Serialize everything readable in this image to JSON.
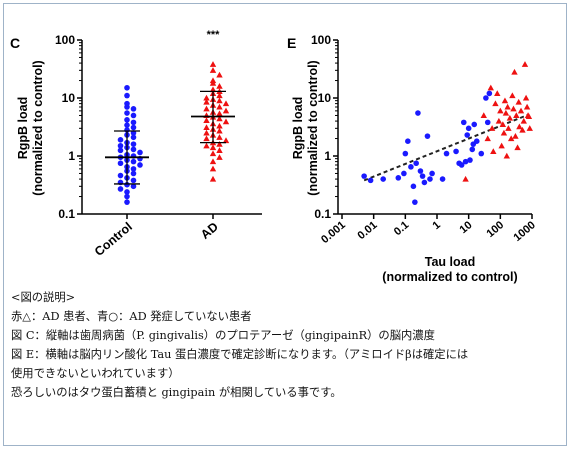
{
  "chart_data": [
    {
      "type": "scatter",
      "panel_label": "C",
      "title": "",
      "ylabel": [
        "RgpB load",
        "(normalized to control)"
      ],
      "xlabel": "",
      "y_scale": "log",
      "ylim": [
        0.1,
        100
      ],
      "y_ticks": [
        {
          "v": 100,
          "label": "100"
        },
        {
          "v": 10,
          "label": "10"
        },
        {
          "v": 1,
          "label": "1"
        },
        {
          "v": 0.1,
          "label": "0.1"
        }
      ],
      "categories": [
        "Control",
        "AD"
      ],
      "annotation": "***",
      "series": [
        {
          "category": "Control",
          "color": "#1a1aff",
          "marker": "circle",
          "mean": 0.95,
          "sd_low": 0.33,
          "sd_high": 2.7,
          "values": [
            15,
            11,
            8,
            7,
            6.5,
            5.5,
            5,
            4.2,
            3.8,
            3.4,
            3.1,
            2.8,
            2.5,
            2.3,
            2.1,
            1.9,
            1.7,
            1.6,
            1.5,
            1.4,
            1.3,
            1.25,
            1.15,
            1.05,
            1,
            0.95,
            0.9,
            0.85,
            0.8,
            0.75,
            0.7,
            0.65,
            0.6,
            0.55,
            0.5,
            0.46,
            0.42,
            0.38,
            0.35,
            0.32,
            0.3,
            0.27,
            0.24,
            0.2,
            0.16
          ]
        },
        {
          "category": "AD",
          "color": "#ee1111",
          "marker": "triangle",
          "mean": 4.8,
          "sd_low": 1.7,
          "sd_high": 13,
          "values": [
            38,
            30,
            25,
            20,
            18,
            16,
            14,
            13,
            12,
            11,
            10,
            9.5,
            9,
            8.5,
            8,
            7.5,
            7,
            6.5,
            6,
            5.7,
            5.4,
            5,
            4.7,
            4.4,
            4.1,
            3.9,
            3.6,
            3.3,
            3.1,
            2.9,
            2.7,
            2.5,
            2.3,
            2.1,
            2,
            1.85,
            1.7,
            1.6,
            1.5,
            1.4,
            1.25,
            1.1,
            0.95,
            0.8,
            0.6,
            0.4
          ]
        }
      ]
    },
    {
      "type": "scatter",
      "panel_label": "E",
      "title": "",
      "ylabel": [
        "RgpB load",
        "(normalized to control)"
      ],
      "xlabel": [
        "Tau load",
        "(normalized to control)"
      ],
      "x_scale": "log",
      "y_scale": "log",
      "xlim": [
        0.001,
        1000
      ],
      "ylim": [
        0.1,
        100
      ],
      "y_ticks": [
        {
          "v": 100,
          "label": "100"
        },
        {
          "v": 10,
          "label": "10"
        },
        {
          "v": 1,
          "label": "1"
        },
        {
          "v": 0.1,
          "label": "0.1"
        }
      ],
      "x_ticks": [
        {
          "v": 0.001,
          "label": "0.001"
        },
        {
          "v": 0.01,
          "label": "0.01"
        },
        {
          "v": 0.1,
          "label": "0.1"
        },
        {
          "v": 1,
          "label": "1"
        },
        {
          "v": 10,
          "label": "10"
        },
        {
          "v": 100,
          "label": "100"
        },
        {
          "v": 1000,
          "label": "1000"
        }
      ],
      "trend_line": {
        "x": [
          0.005,
          800
        ],
        "y": [
          0.38,
          5.2
        ],
        "style": "dashed"
      },
      "series": [
        {
          "color": "#1a1aff",
          "marker": "circle",
          "points": [
            [
              0.005,
              0.45
            ],
            [
              0.008,
              0.38
            ],
            [
              0.02,
              0.4
            ],
            [
              0.06,
              0.42
            ],
            [
              0.09,
              0.5
            ],
            [
              0.1,
              1.1
            ],
            [
              0.12,
              1.8
            ],
            [
              0.15,
              0.65
            ],
            [
              0.18,
              0.3
            ],
            [
              0.2,
              0.16
            ],
            [
              0.22,
              0.75
            ],
            [
              0.25,
              5.5
            ],
            [
              0.3,
              0.55
            ],
            [
              0.35,
              0.45
            ],
            [
              0.4,
              0.35
            ],
            [
              0.5,
              2.2
            ],
            [
              0.6,
              0.4
            ],
            [
              0.7,
              0.5
            ],
            [
              1.5,
              0.4
            ],
            [
              2,
              1.1
            ],
            [
              4,
              1.2
            ],
            [
              5,
              0.75
            ],
            [
              6,
              0.7
            ],
            [
              7,
              3.8
            ],
            [
              8,
              0.8
            ],
            [
              9,
              2.3
            ],
            [
              10,
              3
            ],
            [
              11,
              0.85
            ],
            [
              13,
              1.3
            ],
            [
              14,
              1.6
            ],
            [
              15,
              3.5
            ],
            [
              18,
              1.8
            ],
            [
              25,
              1.1
            ],
            [
              35,
              10
            ],
            [
              40,
              3.8
            ],
            [
              45,
              12
            ]
          ]
        },
        {
          "color": "#ee1111",
          "marker": "triangle",
          "points": [
            [
              8,
              0.4
            ],
            [
              30,
              5
            ],
            [
              40,
              2
            ],
            [
              50,
              15
            ],
            [
              55,
              3
            ],
            [
              60,
              1.2
            ],
            [
              70,
              8
            ],
            [
              80,
              12
            ],
            [
              90,
              4
            ],
            [
              100,
              6
            ],
            [
              110,
              1.5
            ],
            [
              120,
              3.5
            ],
            [
              130,
              2.5
            ],
            [
              140,
              9
            ],
            [
              150,
              5.5
            ],
            [
              160,
              1
            ],
            [
              170,
              7
            ],
            [
              180,
              3
            ],
            [
              200,
              4.5
            ],
            [
              220,
              2
            ],
            [
              240,
              11
            ],
            [
              260,
              6.5
            ],
            [
              280,
              28
            ],
            [
              300,
              2.2
            ],
            [
              320,
              5
            ],
            [
              350,
              1.4
            ],
            [
              380,
              8.5
            ],
            [
              400,
              3.2
            ],
            [
              450,
              6
            ],
            [
              500,
              2.8
            ],
            [
              550,
              4
            ],
            [
              600,
              38
            ],
            [
              650,
              10
            ],
            [
              700,
              7
            ],
            [
              750,
              5
            ],
            [
              800,
              4.8
            ],
            [
              850,
              3
            ]
          ]
        }
      ]
    }
  ],
  "caption": {
    "heading": "<図の説明>",
    "lines": [
      "赤△：AD 患者、青○：AD 発症していない患者",
      "図 C：縦軸は歯周病菌（P. gingivalis）のプロテアーゼ（gingipainR）の脳内濃度",
      "図 E：横軸は脳内リン酸化 Tau 蛋白濃度で確定診断になります。（アミロイドβは確定には",
      "使用できないといわれています）",
      "恐ろしいのはタウ蛋白蓄積と gingipain が相関している事です。"
    ]
  }
}
